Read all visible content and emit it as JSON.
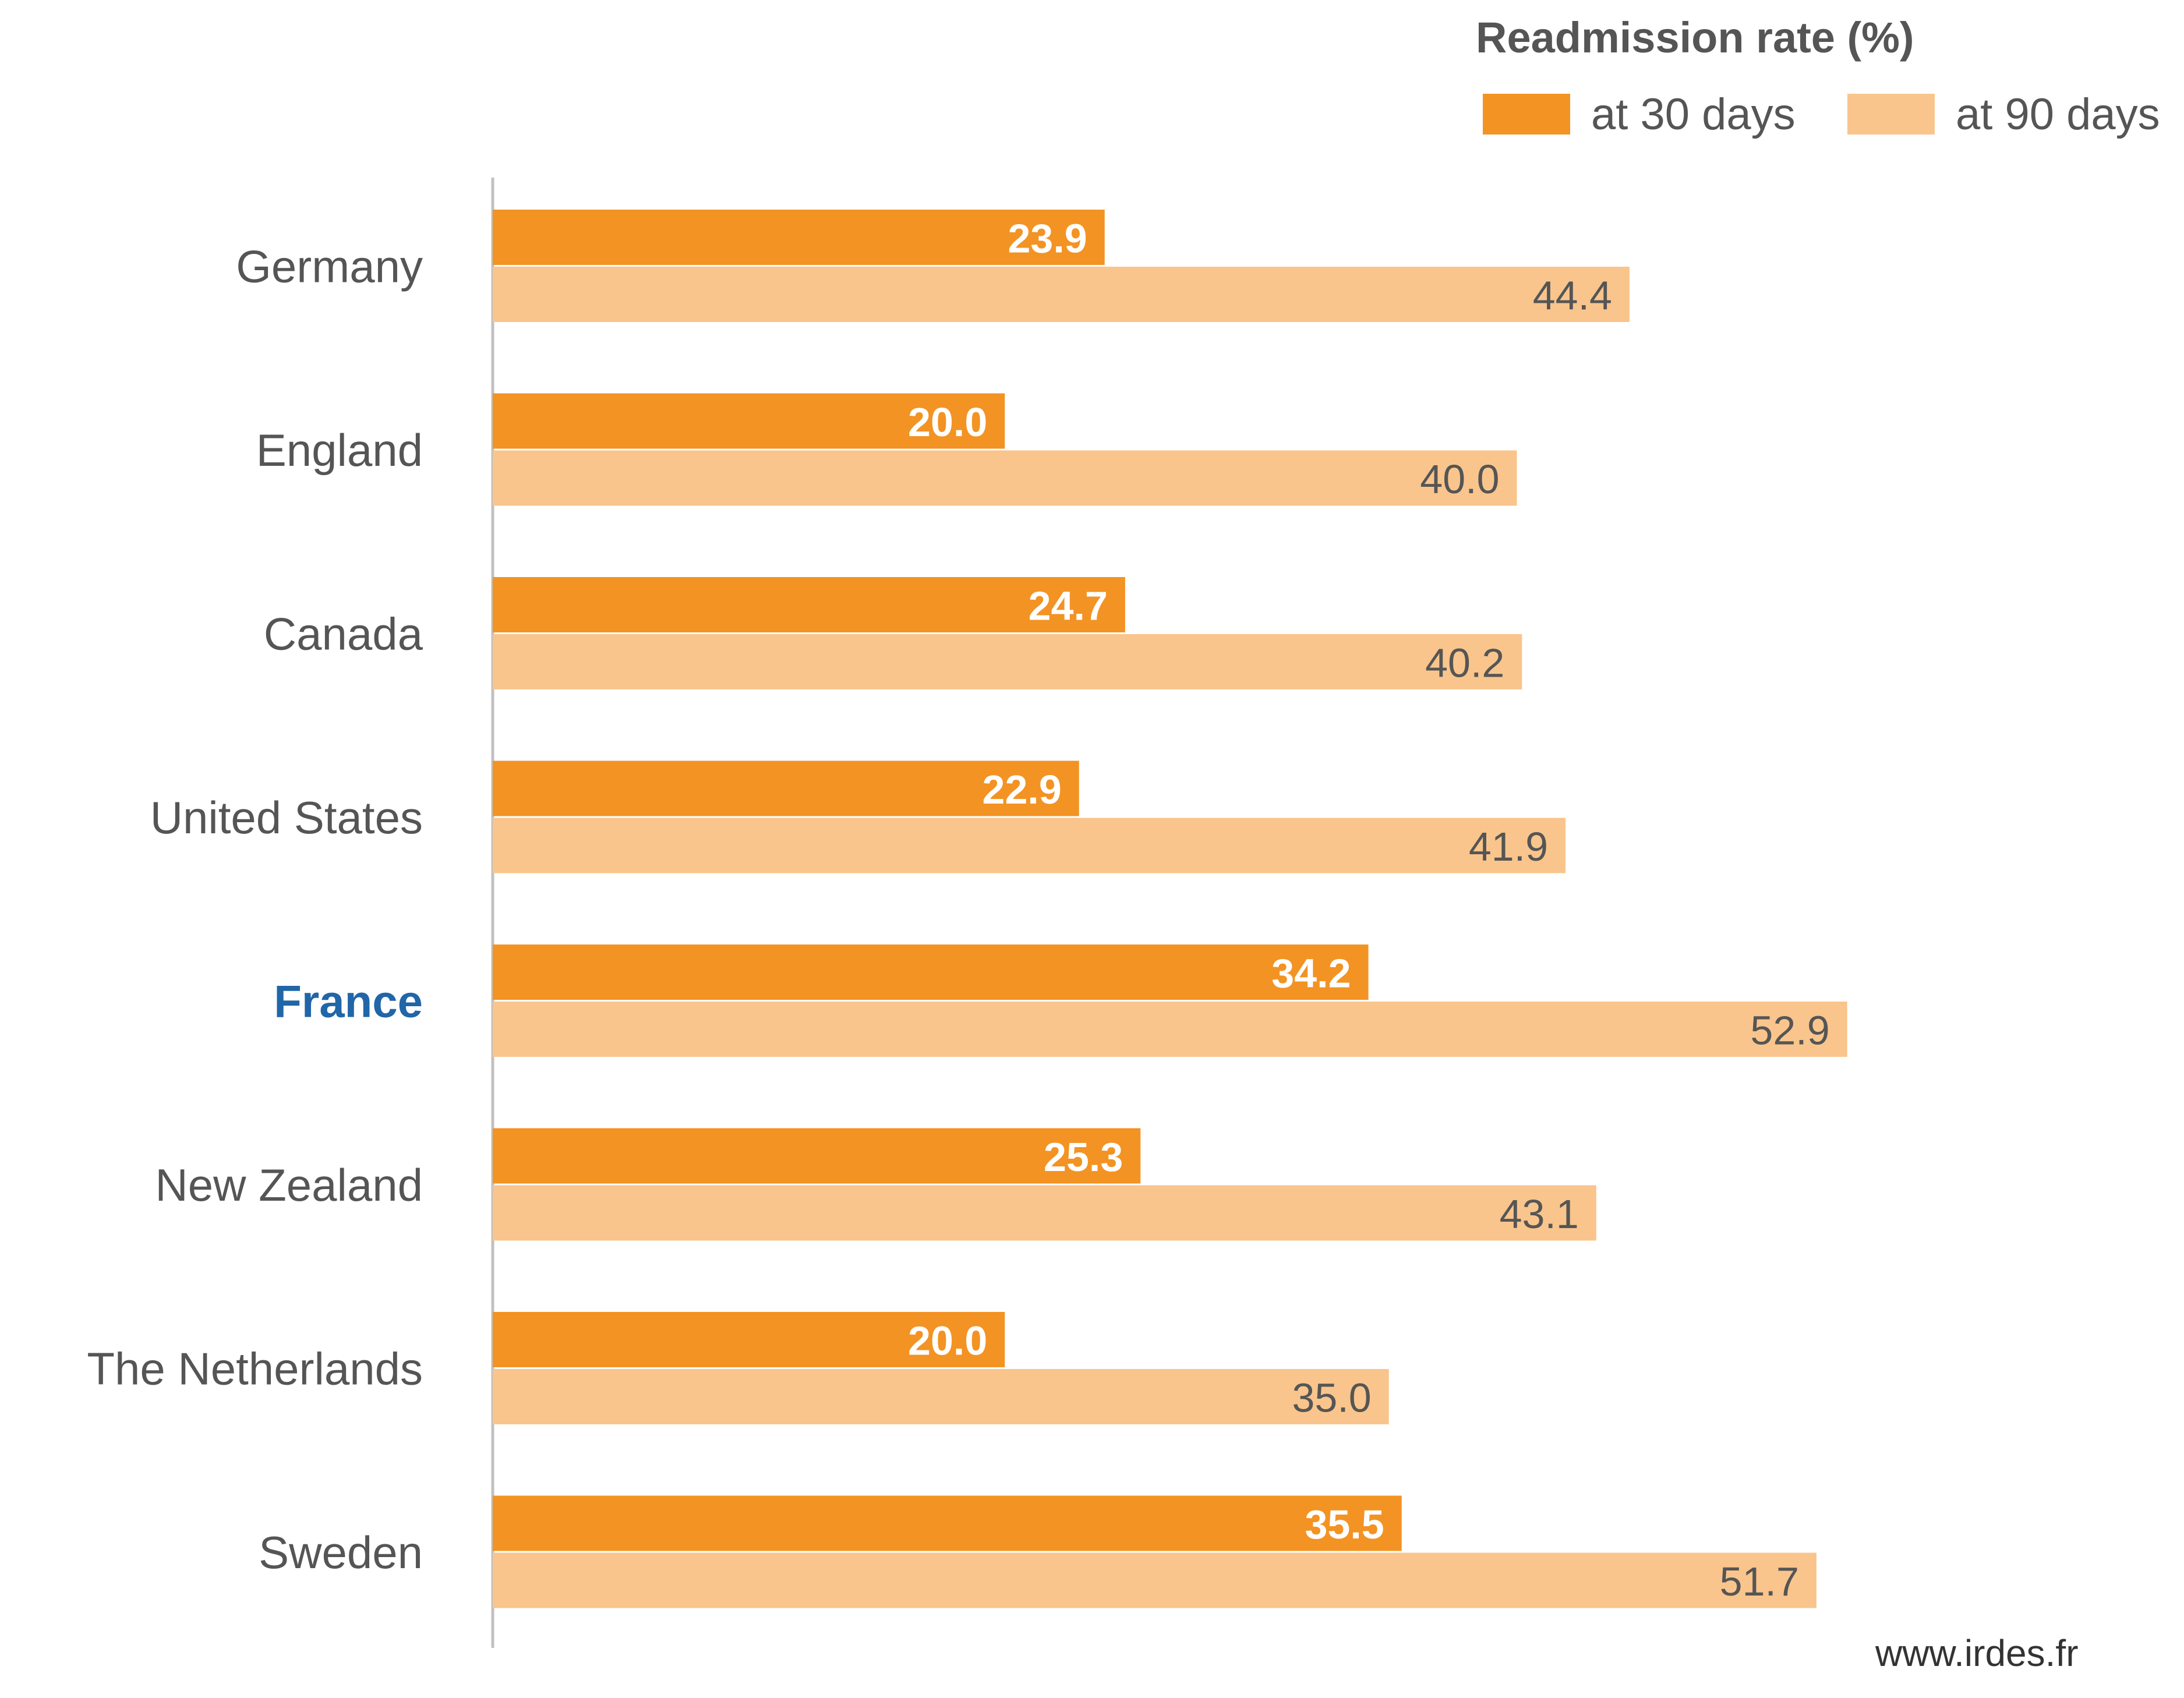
{
  "chart_data": {
    "type": "bar",
    "orientation": "horizontal",
    "title": "Readmission rate (%)",
    "categories": [
      "Germany",
      "England",
      "Canada",
      "United States",
      "France",
      "New Zealand",
      "The Netherlands",
      "Sweden"
    ],
    "highlight_category": "France",
    "series": [
      {
        "name": "at 30 days",
        "values": [
          23.9,
          20.0,
          24.7,
          22.9,
          34.2,
          25.3,
          20.0,
          35.5
        ],
        "labels": [
          "23.9",
          "20.0",
          "24.7",
          "22.9",
          "34.2",
          "25.3",
          "20.0",
          "35.5"
        ]
      },
      {
        "name": "at 90 days",
        "values": [
          44.4,
          40.0,
          40.2,
          41.9,
          52.9,
          43.1,
          35.0,
          51.7
        ],
        "labels": [
          "44.4",
          "40.0",
          "40.2",
          "41.9",
          "52.9",
          "43.1",
          "35.0",
          "51.7"
        ]
      }
    ],
    "xlim": [
      0,
      55
    ],
    "grid": false,
    "legend_position": "top-right"
  },
  "colors": {
    "series_30": "#F39323",
    "series_90": "#F9C58C",
    "highlight_text": "#2066A8",
    "category_text": "#555555",
    "axis_line": "#C0C0C0",
    "label_30": "#FFFFFF",
    "label_90": "#555555"
  },
  "source": "www.irdes.fr"
}
